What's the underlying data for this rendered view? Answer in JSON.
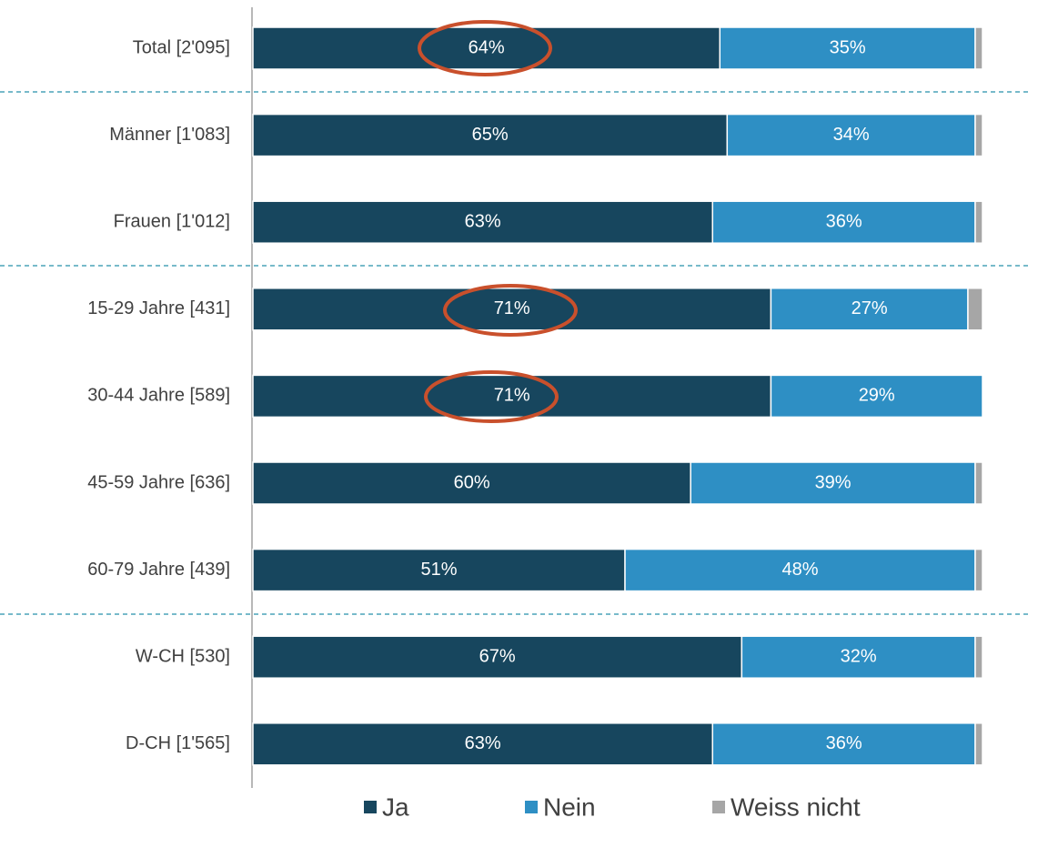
{
  "chart_data": {
    "type": "stacked-bar",
    "categories": [
      "Total [2'095]",
      "Männer [1'083]",
      "Frauen [1'012]",
      "15-29 Jahre [431]",
      "30-44 Jahre [589]",
      "45-59 Jahre [636]",
      "60-79 Jahre [439]",
      "W-CH [530]",
      "D-CH [1'565]"
    ],
    "series": [
      {
        "name": "Ja",
        "color": "#17465e",
        "values": [
          64,
          65,
          63,
          71,
          71,
          60,
          51,
          67,
          63
        ],
        "value_labels": [
          "64%",
          "65%",
          "63%",
          "71%",
          "71%",
          "60%",
          "51%",
          "67%",
          "63%"
        ]
      },
      {
        "name": "Nein",
        "color": "#2e8fc4",
        "values": [
          35,
          34,
          36,
          27,
          29,
          39,
          48,
          32,
          36
        ],
        "value_labels": [
          "35%",
          "34%",
          "36%",
          "27%",
          "29%",
          "39%",
          "48%",
          "32%",
          "36%"
        ]
      },
      {
        "name": "Weiss nicht",
        "color": "#a6a6a6",
        "values": [
          1,
          1,
          1,
          2,
          0,
          1,
          1,
          1,
          1
        ]
      }
    ]
  }
}
